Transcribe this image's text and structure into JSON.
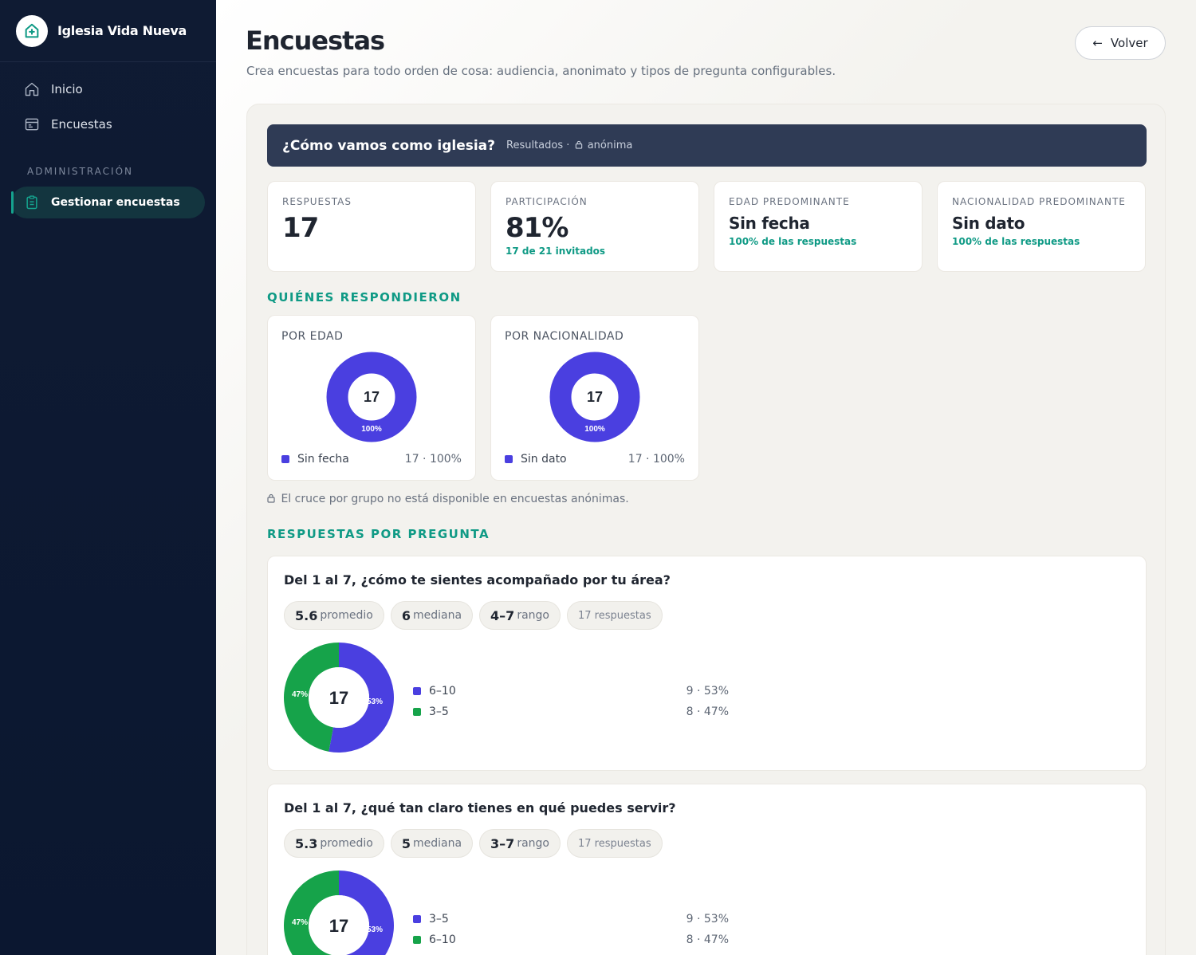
{
  "brand": {
    "name": "Iglesia Vida Nueva",
    "logo_icon": "home-icon"
  },
  "sidebar": {
    "items": [
      {
        "label": "Inicio",
        "icon": "home-icon"
      },
      {
        "label": "Encuestas",
        "icon": "survey-icon"
      }
    ],
    "section_label": "ADMINISTRACIÓN",
    "active_item": {
      "label": "Gestionar encuestas",
      "icon": "clipboard-icon"
    }
  },
  "header": {
    "title": "Encuestas",
    "subtitle": "Crea encuestas para todo orden de cosa: audiencia, anonimato y tipos de pregunta configurables.",
    "back_label": "Volver"
  },
  "survey": {
    "title": "¿Cómo vamos como iglesia?",
    "meta_prefix": "Resultados ·",
    "meta_anon": "anónima"
  },
  "kpis": [
    {
      "label": "RESPUESTAS",
      "value": "17",
      "note": ""
    },
    {
      "label": "PARTICIPACIÓN",
      "value": "81%",
      "note": "17 de 21 invitados"
    },
    {
      "label": "EDAD PREDOMINANTE",
      "value": "Sin fecha",
      "note": "100% de las respuestas"
    },
    {
      "label": "NACIONALIDAD PREDOMINANTE",
      "value": "Sin dato",
      "note": "100% de las respuestas"
    }
  ],
  "sections": {
    "who": "QUIÉNES RESPONDIERON",
    "by_question": "RESPUESTAS POR PREGUNTA"
  },
  "demographics": [
    {
      "label": "POR EDAD",
      "total": "17",
      "pct_label": "100%",
      "legend": "Sin fecha",
      "value": "17 · 100%"
    },
    {
      "label": "POR NACIONALIDAD",
      "total": "17",
      "pct_label": "100%",
      "legend": "Sin dato",
      "value": "17 · 100%"
    }
  ],
  "anon_note": "El cruce por grupo no está disponible en encuestas anónimas.",
  "questions": [
    {
      "title": "Del 1 al 7, ¿cómo te sientes acompañado por tu área?",
      "stats": [
        {
          "value": "5.6",
          "label": "promedio"
        },
        {
          "value": "6",
          "label": "mediana"
        },
        {
          "value": "4–7",
          "label": "rango"
        }
      ],
      "responses": "17 respuestas",
      "total": "17",
      "slice_labels": {
        "blue": "53%",
        "green": "47%"
      },
      "legend": [
        {
          "label": "6–10",
          "value": "9 · 53%",
          "color": "#4a3fe0"
        },
        {
          "label": "3–5",
          "value": "8 · 47%",
          "color": "#16a34a"
        }
      ]
    },
    {
      "title": "Del 1 al 7, ¿qué tan claro tienes en qué puedes servir?",
      "stats": [
        {
          "value": "5.3",
          "label": "promedio"
        },
        {
          "value": "5",
          "label": "mediana"
        },
        {
          "value": "3–7",
          "label": "rango"
        }
      ],
      "responses": "17 respuestas",
      "total": "17",
      "slice_labels": {
        "blue": "53%",
        "green": "47%"
      },
      "legend": [
        {
          "label": "3–5",
          "value": "9 · 53%",
          "color": "#4a3fe0"
        },
        {
          "label": "6–10",
          "value": "8 · 47%",
          "color": "#16a34a"
        }
      ]
    }
  ],
  "colors": {
    "accent": "#0f9a85",
    "blue": "#4a3fe0",
    "green": "#16a34a",
    "sidebar": "#0f1b33"
  },
  "chart_data": [
    {
      "type": "pie",
      "title": "POR EDAD",
      "categories": [
        "Sin fecha"
      ],
      "values": [
        17
      ]
    },
    {
      "type": "pie",
      "title": "POR NACIONALIDAD",
      "categories": [
        "Sin dato"
      ],
      "values": [
        17
      ]
    },
    {
      "type": "pie",
      "title": "Del 1 al 7, ¿cómo te sientes acompañado por tu área?",
      "categories": [
        "6–10",
        "3–5"
      ],
      "values": [
        9,
        8
      ]
    },
    {
      "type": "pie",
      "title": "Del 1 al 7, ¿qué tan claro tienes en qué puedes servir?",
      "categories": [
        "3–5",
        "6–10"
      ],
      "values": [
        9,
        8
      ]
    }
  ]
}
